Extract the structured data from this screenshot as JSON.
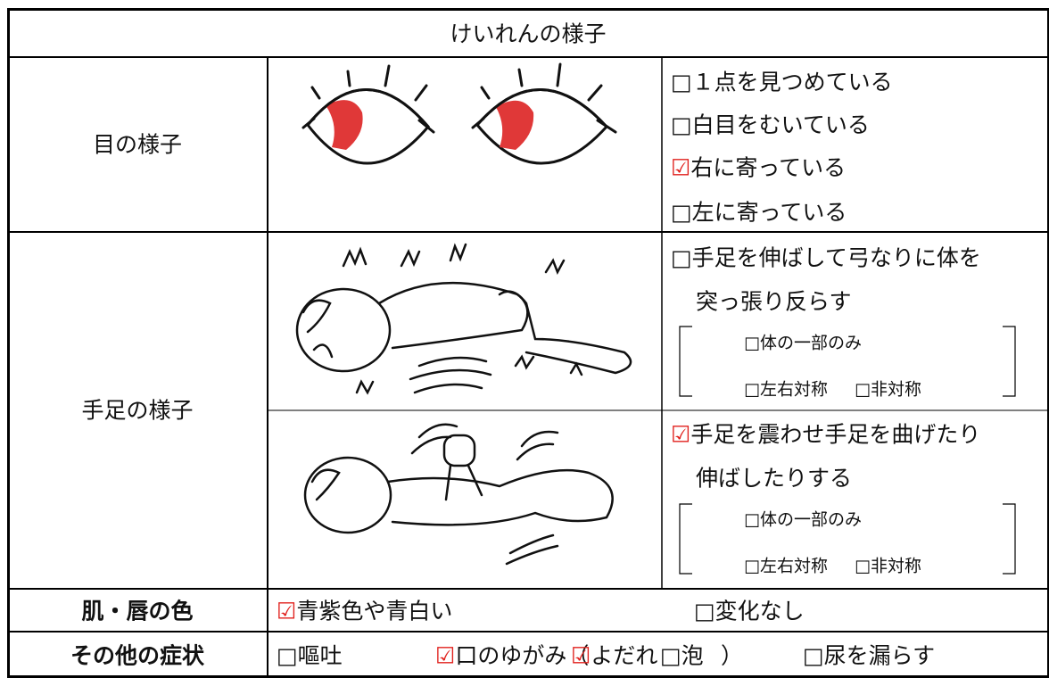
{
  "title": "けいれんの様子",
  "eyes": {
    "label": "目の様子",
    "options": [
      {
        "box": "□",
        "text": "１点を見つめている",
        "checked": false
      },
      {
        "box": "□",
        "text": "白目をむいている",
        "checked": false
      },
      {
        "box": "☑",
        "text": "右に寄っている",
        "checked": true
      },
      {
        "box": "□",
        "text": "左に寄っている",
        "checked": false
      }
    ]
  },
  "limbs": {
    "label": "手足の様子",
    "types": [
      {
        "box": "□",
        "checked": false,
        "text": [
          "手足を伸ばして弓なりに体を",
          "突っ張り反らす"
        ],
        "sub_options": [
          {
            "box": "□",
            "text": "体の一部のみ",
            "checked": false
          },
          {
            "box": "□",
            "text": "左右対称",
            "checked": false
          },
          {
            "box": "□",
            "text": "非対称",
            "checked": false
          }
        ]
      },
      {
        "box": "☑",
        "checked": true,
        "text": [
          "手足を震わせ手足を曲げたり",
          "伸ばしたりする"
        ],
        "sub_options": [
          {
            "box": "□",
            "text": "体の一部のみ",
            "checked": false
          },
          {
            "box": "□",
            "text": "左右対称",
            "checked": false
          },
          {
            "box": "□",
            "text": "非対称",
            "checked": false
          }
        ]
      }
    ]
  },
  "skin": {
    "label": "肌・唇の色",
    "options": [
      {
        "box": "☑",
        "text": "青紫色や青白い",
        "checked": true
      },
      {
        "box": "□",
        "text": "変化なし",
        "checked": false
      }
    ]
  },
  "other": {
    "label": "その他の症状",
    "options": [
      {
        "box": "□",
        "text": "嘔吐",
        "checked": false
      },
      {
        "box": "☑",
        "text": "口のゆがみ（",
        "checked": true
      },
      {
        "box": "☑",
        "text": "よだれ",
        "checked": true
      },
      {
        "box": "□",
        "text": "泡",
        "checked": false
      },
      {
        "box": "□",
        "text": "尿を漏らす",
        "checked": false
      }
    ],
    "close": "）"
  }
}
